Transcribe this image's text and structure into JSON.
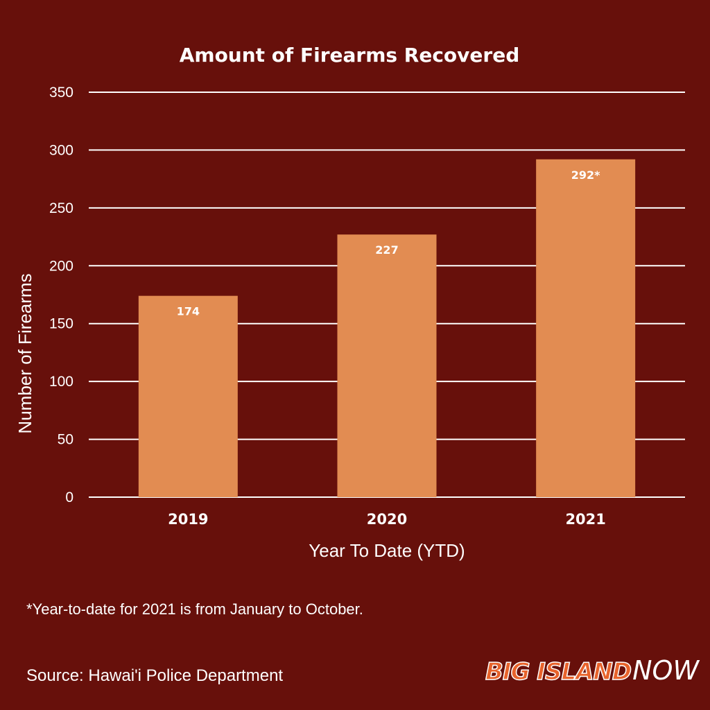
{
  "chart_data": {
    "type": "bar",
    "title": "Amount of Firearms Recovered",
    "xlabel": "Year To Date (YTD)",
    "ylabel": "Number of Firearms",
    "categories": [
      "2019",
      "2020",
      "2021"
    ],
    "values": [
      174,
      227,
      292
    ],
    "data_labels": [
      "174",
      "227",
      "292*"
    ],
    "ylim": [
      0,
      350
    ],
    "yticks": [
      0,
      50,
      100,
      150,
      200,
      250,
      300,
      350
    ],
    "grid": true,
    "bar_color": "#e28c52",
    "background_color": "#67100b"
  },
  "footnote": "*Year-to-date for 2021 is from January to October.",
  "source": "Source: Hawai'i Police Department",
  "logo": {
    "main": "BIG ISLAND",
    "sub": "NOW"
  }
}
